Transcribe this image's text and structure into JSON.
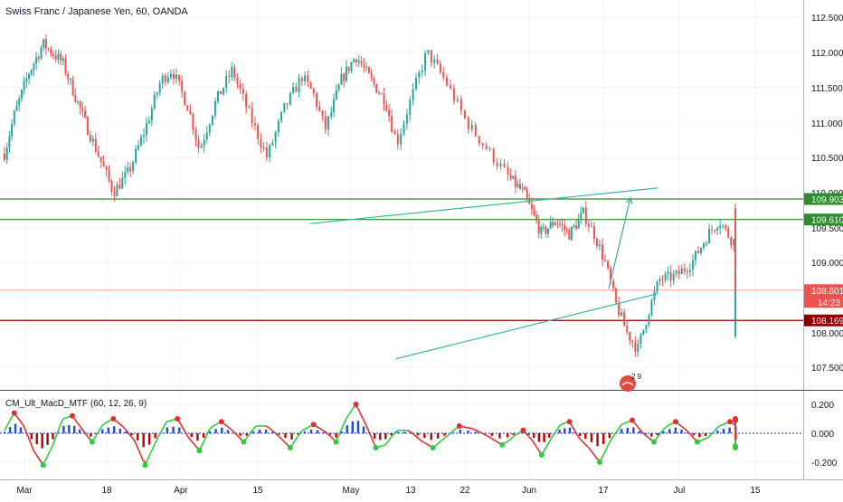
{
  "header": {
    "title": "Swiss Franc / Japanese Yen, 60, OANDA"
  },
  "colors": {
    "up": "#26a69a",
    "down": "#ef5350",
    "grid": "#f0f3fa",
    "level_green": "#2e8b2e",
    "level_red": "#8b0000",
    "channel": "#3cb39a",
    "arrow": "#3fa6a0",
    "macd_up": "#2ecc40",
    "macd_down": "#e03030",
    "hist_pos": "#1d4fd6",
    "hist_neg": "#c00000"
  },
  "chart_data": [
    {
      "type": "candlestick",
      "title": "Swiss Franc / Japanese Yen, 60, OANDA",
      "x_ticks": [
        "Mar",
        "18",
        "Apr",
        "15",
        "May",
        "13",
        "22",
        "Jun",
        "17",
        "Jul",
        "15"
      ],
      "y_ticks": [
        "112.500",
        "112.000",
        "111.500",
        "111.000",
        "110.500",
        "110.000",
        "109.500",
        "109.000",
        "108.500",
        "108.000",
        "107.500"
      ],
      "ylim": [
        107.3,
        112.7
      ],
      "levels": [
        {
          "name": "resistance-upper",
          "value": 109.903,
          "label": "109.903",
          "color": "#2e8b2e"
        },
        {
          "name": "resistance-lower",
          "value": 109.61,
          "label": "109.610",
          "color": "#2e8b2e"
        },
        {
          "name": "last-price",
          "value": 108.601,
          "label": "108.601",
          "countdown": "14:23",
          "color": "#ef5350"
        },
        {
          "name": "support",
          "value": 108.169,
          "label": "108.169",
          "color": "#8b0000"
        }
      ],
      "trendlines": [
        {
          "name": "channel-upper",
          "from": {
            "x": "Apr 24",
            "y": 109.55
          },
          "to": {
            "x": "Jun 26",
            "y": 110.06
          }
        },
        {
          "name": "channel-lower",
          "from": {
            "x": "May 10",
            "y": 107.62
          },
          "to": {
            "x": "Jun 26",
            "y": 108.55
          }
        },
        {
          "name": "projection-arrow",
          "from": {
            "x": "Jun 17",
            "y": 108.62
          },
          "to": {
            "x": "Jun 21",
            "y": 109.92
          }
        }
      ],
      "path": [
        [
          0,
          110.55
        ],
        [
          2,
          111.1
        ],
        [
          5,
          111.7
        ],
        [
          8,
          112.12
        ],
        [
          12,
          111.85
        ],
        [
          15,
          111.3
        ],
        [
          18,
          110.75
        ],
        [
          22,
          110.0
        ],
        [
          25,
          110.3
        ],
        [
          28,
          110.9
        ],
        [
          31,
          111.6
        ],
        [
          33,
          111.75
        ],
        [
          36,
          111.2
        ],
        [
          38,
          110.6
        ],
        [
          41,
          111.3
        ],
        [
          44,
          111.75
        ],
        [
          47,
          111.1
        ],
        [
          50,
          110.5
        ],
        [
          53,
          111.2
        ],
        [
          56,
          111.65
        ],
        [
          58,
          111.4
        ],
        [
          60,
          110.9
        ],
        [
          63,
          111.6
        ],
        [
          66,
          111.95
        ],
        [
          69,
          111.6
        ],
        [
          72,
          111.3
        ],
        [
          74,
          110.7
        ],
        [
          77,
          111.5
        ],
        [
          79,
          112.0
        ],
        [
          82,
          111.6
        ],
        [
          85,
          111.0
        ],
        [
          88,
          110.6
        ],
        [
          91,
          110.2
        ],
        [
          94,
          110.0
        ],
        [
          96,
          109.7
        ],
        [
          98,
          109.4
        ],
        [
          101,
          109.6
        ],
        [
          104,
          109.4
        ],
        [
          107,
          109.7
        ],
        [
          109,
          109.4
        ],
        [
          111,
          109.0
        ],
        [
          113,
          108.4
        ],
        [
          115,
          108.0
        ],
        [
          117,
          107.75
        ],
        [
          119,
          108.3
        ],
        [
          121,
          108.75
        ],
        [
          124,
          108.8
        ],
        [
          127,
          109.0
        ],
        [
          130,
          109.4
        ],
        [
          132,
          109.6
        ],
        [
          134,
          109.35
        ],
        [
          137,
          109.15
        ],
        [
          140,
          108.7
        ],
        [
          142,
          108.3
        ],
        [
          143,
          107.95
        ],
        [
          145,
          108.5
        ],
        [
          148,
          109.0
        ],
        [
          151,
          109.4
        ],
        [
          153,
          109.6
        ],
        [
          155,
          109.75
        ],
        [
          157,
          109.5
        ],
        [
          159,
          109.2
        ],
        [
          161,
          108.85
        ],
        [
          163,
          108.5
        ],
        [
          165,
          108.35
        ],
        [
          166,
          108.5
        ]
      ],
      "price_range": [
        107.6,
        112.2
      ]
    },
    {
      "type": "line",
      "name": "CM_Ult_MacD_MTF",
      "label": "CM_Ult_MacD_MTF (60, 12, 26, 9)",
      "y_ticks": [
        "0.200",
        "0.000",
        "-0.200"
      ],
      "ylim": [
        -0.26,
        0.24
      ],
      "series_path": [
        [
          0,
          0.02
        ],
        [
          2,
          0.14
        ],
        [
          4,
          0.05
        ],
        [
          6,
          -0.12
        ],
        [
          8,
          -0.22
        ],
        [
          10,
          -0.08
        ],
        [
          12,
          0.1
        ],
        [
          14,
          0.12
        ],
        [
          16,
          0.03
        ],
        [
          18,
          -0.06
        ],
        [
          20,
          0.06
        ],
        [
          22,
          0.1
        ],
        [
          24,
          0.04
        ],
        [
          26,
          -0.05
        ],
        [
          28,
          -0.22
        ],
        [
          30,
          -0.06
        ],
        [
          32,
          0.08
        ],
        [
          34,
          0.1
        ],
        [
          36,
          -0.03
        ],
        [
          38,
          -0.12
        ],
        [
          40,
          0.04
        ],
        [
          42,
          0.08
        ],
        [
          44,
          0.02
        ],
        [
          46,
          -0.06
        ],
        [
          48,
          0.05
        ],
        [
          50,
          0.05
        ],
        [
          52,
          -0.02
        ],
        [
          54,
          -0.1
        ],
        [
          56,
          0.02
        ],
        [
          58,
          0.06
        ],
        [
          60,
          0.01
        ],
        [
          62,
          -0.06
        ],
        [
          64,
          0.1
        ],
        [
          66,
          0.2
        ],
        [
          68,
          0.06
        ],
        [
          70,
          -0.1
        ],
        [
          72,
          -0.08
        ],
        [
          74,
          0.02
        ],
        [
          76,
          0.02
        ],
        [
          78,
          -0.05
        ],
        [
          80,
          -0.1
        ],
        [
          82,
          -0.03
        ],
        [
          84,
          0.05
        ],
        [
          86,
          0.03
        ],
        [
          88,
          -0.02
        ],
        [
          90,
          -0.08
        ],
        [
          92,
          -0.02
        ],
        [
          94,
          0.02
        ],
        [
          96,
          -0.05
        ],
        [
          98,
          -0.15
        ],
        [
          100,
          -0.04
        ],
        [
          102,
          0.06
        ],
        [
          104,
          0.08
        ],
        [
          106,
          -0.03
        ],
        [
          108,
          -0.1
        ],
        [
          110,
          -0.2
        ],
        [
          112,
          -0.05
        ],
        [
          114,
          0.06
        ],
        [
          116,
          0.09
        ],
        [
          118,
          0.0
        ],
        [
          120,
          -0.06
        ],
        [
          122,
          0.04
        ],
        [
          124,
          0.08
        ],
        [
          126,
          0.02
        ],
        [
          128,
          -0.06
        ],
        [
          130,
          -0.03
        ],
        [
          132,
          0.05
        ],
        [
          134,
          0.08
        ],
        [
          136,
          0.03
        ],
        [
          138,
          -0.04
        ],
        [
          140,
          -0.09
        ],
        [
          142,
          -0.06
        ],
        [
          144,
          0.02
        ],
        [
          146,
          0.08
        ],
        [
          148,
          0.1
        ],
        [
          150,
          0.04
        ],
        [
          152,
          -0.05
        ],
        [
          154,
          -0.1
        ],
        [
          156,
          0.02
        ],
        [
          158,
          0.09
        ],
        [
          160,
          0.05
        ],
        [
          162,
          -0.06
        ],
        [
          164,
          -0.09
        ],
        [
          166,
          -0.04
        ]
      ]
    }
  ],
  "watermark": {
    "text": "2 9"
  }
}
